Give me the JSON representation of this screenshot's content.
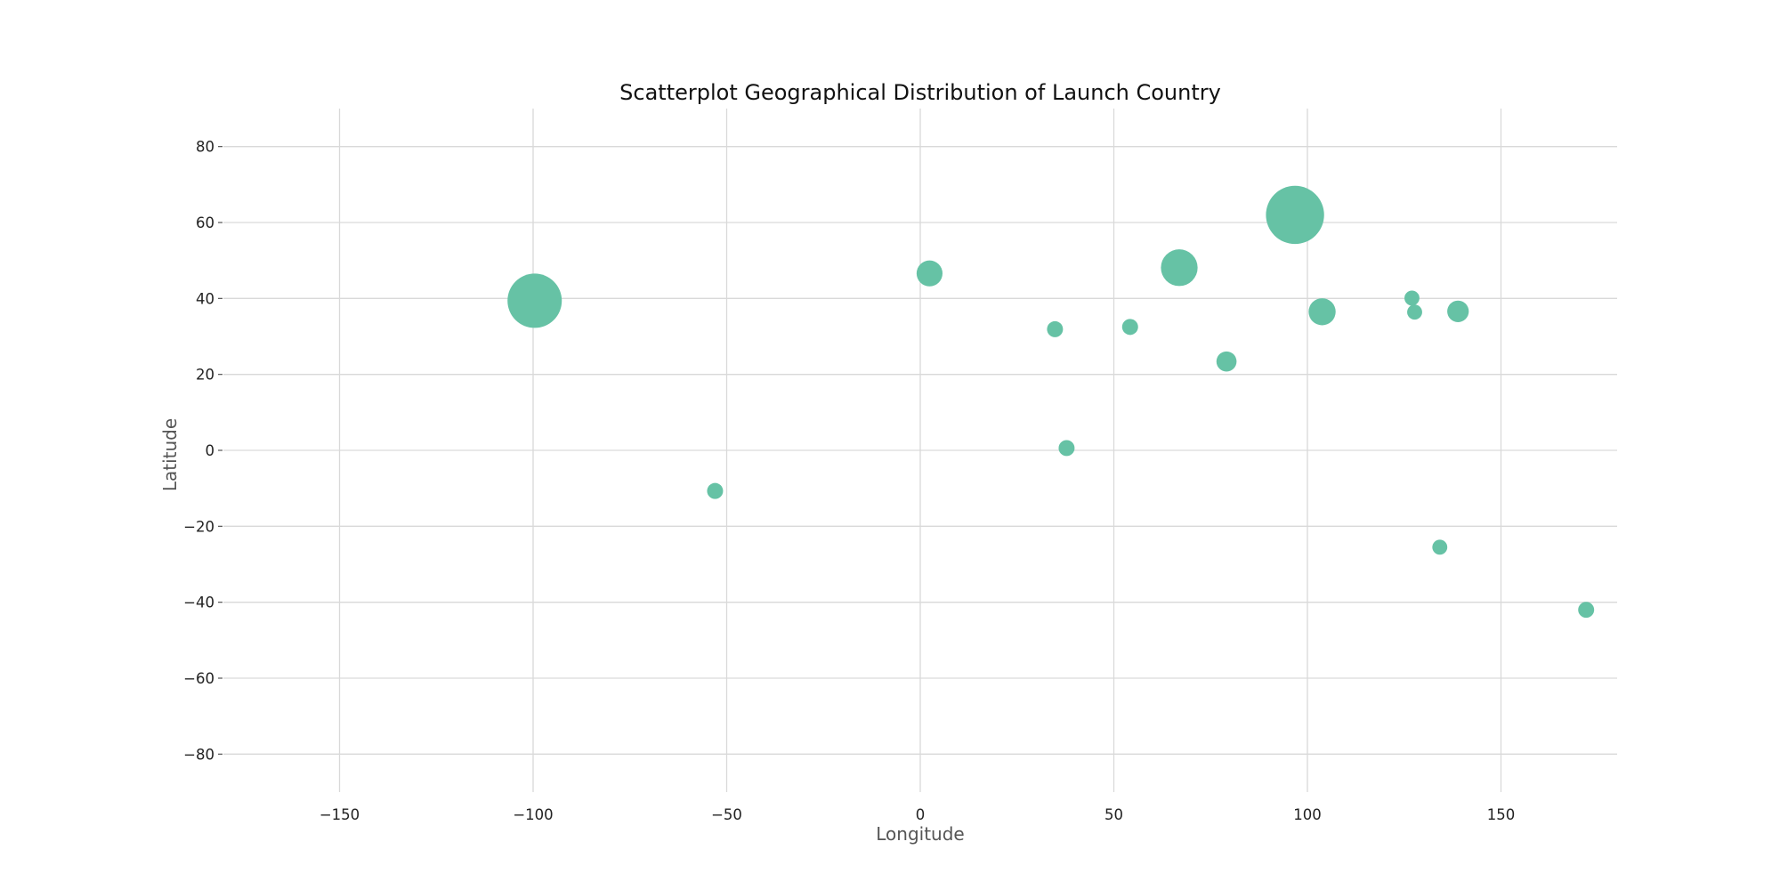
{
  "chart_data": {
    "type": "scatter",
    "title": "Scatterplot Geographical Distribution of Launch Country",
    "xlabel": "Longitude",
    "ylabel": "Latitude",
    "xlim": [
      -180,
      180
    ],
    "ylim": [
      -90,
      90
    ],
    "xticks": [
      -150,
      -100,
      -50,
      0,
      50,
      100,
      150
    ],
    "yticks": [
      -80,
      -60,
      -40,
      -20,
      0,
      20,
      40,
      60,
      80
    ],
    "xtick_labels": [
      "−150",
      "−100",
      "−50",
      "0",
      "50",
      "100",
      "150"
    ],
    "ytick_labels": [
      "−80",
      "−60",
      "−40",
      "−20",
      "0",
      "20",
      "40",
      "60",
      "80"
    ],
    "grid": true,
    "point_color": "#66c2a5",
    "size_encoding": "relative marker size",
    "points": [
      {
        "x": -99.6,
        "y": 39.4,
        "size": 100
      },
      {
        "x": -53.0,
        "y": -10.7,
        "size": 8
      },
      {
        "x": 2.4,
        "y": 46.6,
        "size": 22
      },
      {
        "x": 34.8,
        "y": 31.9,
        "size": 8
      },
      {
        "x": 37.8,
        "y": 0.6,
        "size": 8
      },
      {
        "x": 54.2,
        "y": 32.5,
        "size": 8
      },
      {
        "x": 66.9,
        "y": 48.1,
        "size": 45
      },
      {
        "x": 79.1,
        "y": 23.4,
        "size": 13
      },
      {
        "x": 96.8,
        "y": 62.0,
        "size": 115
      },
      {
        "x": 103.8,
        "y": 36.5,
        "size": 24
      },
      {
        "x": 127.0,
        "y": 40.1,
        "size": 7
      },
      {
        "x": 127.7,
        "y": 36.4,
        "size": 7
      },
      {
        "x": 134.2,
        "y": -25.5,
        "size": 7
      },
      {
        "x": 138.9,
        "y": 36.6,
        "size": 15
      },
      {
        "x": 172.0,
        "y": -42.0,
        "size": 8
      }
    ]
  }
}
